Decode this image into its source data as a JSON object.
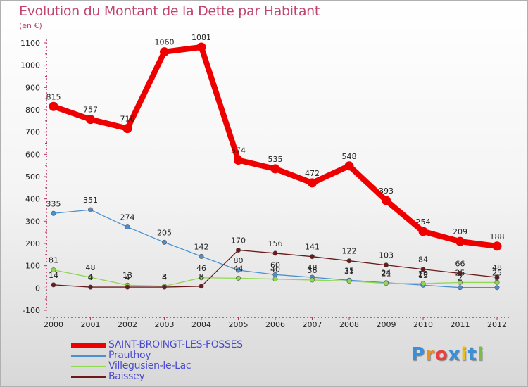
{
  "title": "Evolution du Montant de la Dette par Habitant",
  "unit": "(en €)",
  "logo": {
    "text": "Proxiti",
    "letter_colors": [
      "#3a8fd8",
      "#e89020",
      "#e84040",
      "#3a8fd8",
      "#e8c020",
      "#3a8fd8",
      "#78c040"
    ]
  },
  "chart_data": {
    "type": "line",
    "x": [
      "2000",
      "2001",
      "2002",
      "2003",
      "2004",
      "2005",
      "2006",
      "2007",
      "2008",
      "2009",
      "2010",
      "2011",
      "2012"
    ],
    "ylim": [
      -100,
      1100
    ],
    "yticks": [
      -100,
      0,
      100,
      200,
      300,
      400,
      500,
      600,
      700,
      800,
      900,
      1000,
      1100
    ],
    "grid": false,
    "legend_position": "bottom-left",
    "series": [
      {
        "name": "SAINT-BROINGT-LES-FOSSES",
        "color": "#ee0000",
        "values": [
          815,
          757,
          716,
          1060,
          1081,
          574,
          535,
          472,
          548,
          393,
          254,
          209,
          188
        ]
      },
      {
        "name": "Prauthoy",
        "color": "#4a90d0",
        "values": [
          335,
          351,
          274,
          205,
          142,
          80,
          60,
          48,
          35,
          24,
          13,
          2,
          2
        ]
      },
      {
        "name": "Villegusien-le-Lac",
        "color": "#90d850",
        "values": [
          81,
          48,
          13,
          8,
          46,
          44,
          40,
          36,
          31,
          21,
          20,
          25,
          25
        ]
      },
      {
        "name": "Baissey",
        "color": "#6a1a1a",
        "values": [
          14,
          4,
          4,
          4,
          8,
          170,
          156,
          141,
          122,
          103,
          84,
          66,
          48
        ]
      }
    ]
  }
}
